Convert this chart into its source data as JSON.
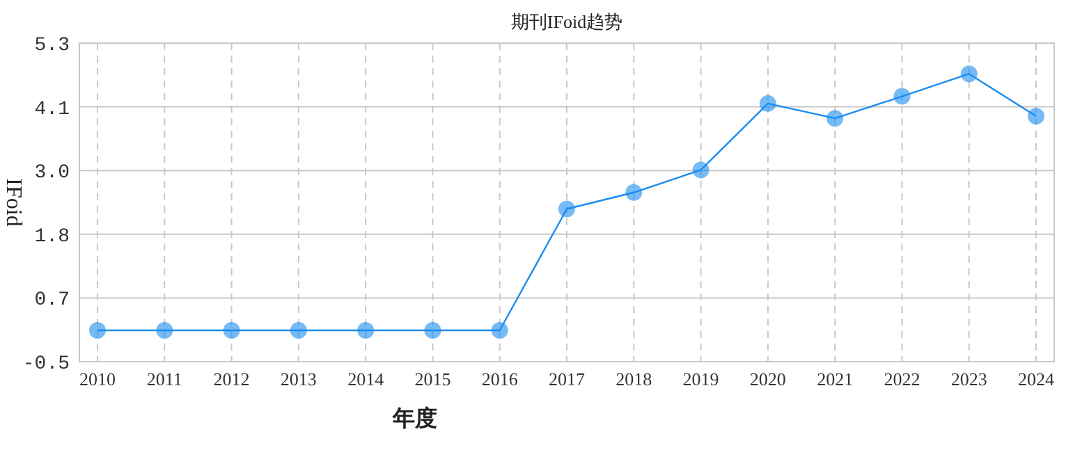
{
  "chart_data": {
    "type": "line",
    "title": "期刊IFoid趋势",
    "xlabel": "年度",
    "ylabel": "IFoid",
    "categories": [
      "2010",
      "2011",
      "2012",
      "2013",
      "2014",
      "2015",
      "2016",
      "2017",
      "2018",
      "2019",
      "2020",
      "2021",
      "2022",
      "2023",
      "2024"
    ],
    "series": [
      {
        "color": "#1a8cf0",
        "values": [
          0.07,
          0.07,
          0.07,
          0.07,
          0.07,
          0.07,
          0.07,
          2.28,
          2.58,
          2.99,
          4.2,
          3.93,
          4.33,
          4.74,
          3.97
        ]
      }
    ],
    "ylim": [
      -0.5,
      5.3
    ],
    "yticks": [
      -0.5,
      {
        "value": 0.66,
        "label": "0.7"
      },
      {
        "value": 1.82,
        "label": "1.8"
      },
      {
        "value": 2.98,
        "label": "3.0"
      },
      {
        "value": 4.14,
        "label": "4.1"
      },
      5.3
    ],
    "grid": true,
    "marker": "circle",
    "line_style": "solid"
  }
}
